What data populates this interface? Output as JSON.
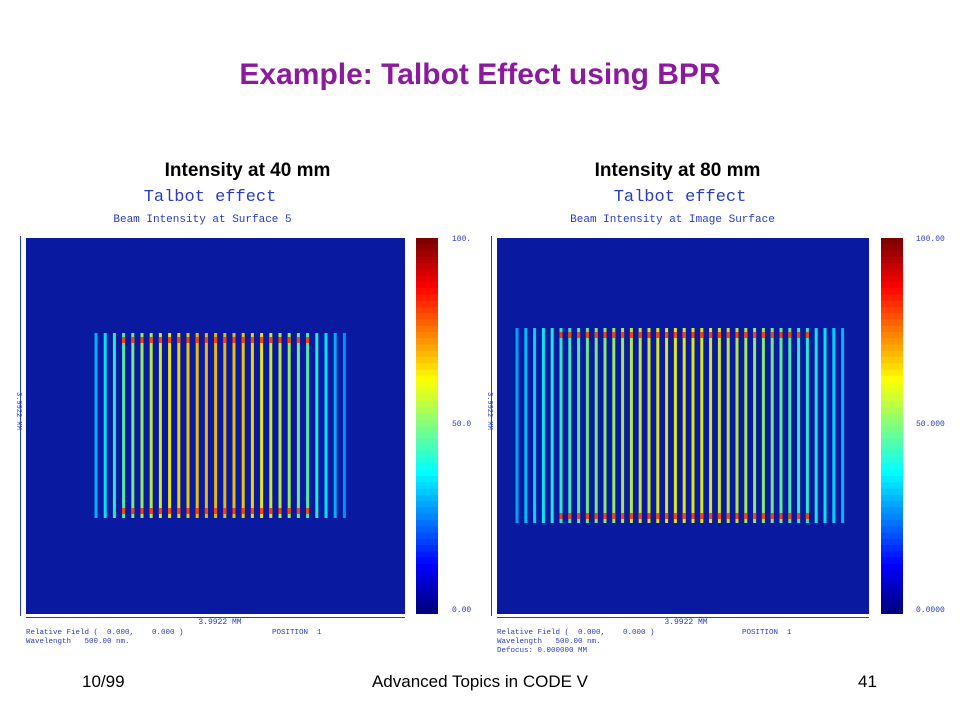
{
  "slide": {
    "title": "Example: Talbot Effect using BPR",
    "footer_left": "10/99",
    "footer_center": "Advanced Topics in CODE V",
    "footer_right": "41"
  },
  "panels": [
    {
      "caption": "Intensity at 40 mm",
      "plot_title": "Talbot effect",
      "plot_subtitle": "Beam Intensity at Surface 5",
      "x_axis_label": "3.9922 MM",
      "y_axis_label": "3.9922 MM",
      "colorbar_ticks": [
        "100.",
        "50.0",
        "0.00"
      ],
      "info_line1": "Relative Field (  0.000,    0.000 )",
      "info_position": "POSITION  1",
      "info_line2": "Wavelength   500.00 nm.",
      "info_line3": ""
    },
    {
      "caption": "Intensity at 80 mm",
      "plot_title": "Talbot effect",
      "plot_subtitle": "Beam Intensity at Image Surface",
      "x_axis_label": "3.9922 MM",
      "y_axis_label": "3.9922 MM",
      "colorbar_ticks": [
        "100.00",
        "50.000",
        "0.0000"
      ],
      "info_line1": "Relative Field (  0.000,    0.000 )",
      "info_position": "POSITION  1",
      "info_line2": "Wavelength   500.00 nm.",
      "info_line3": "Defocus: 0.000000 MM"
    }
  ],
  "colors": {
    "title": "#8b1a9c",
    "plot_text": "#2a3cc4",
    "background_field": "#0a1aa0"
  }
}
